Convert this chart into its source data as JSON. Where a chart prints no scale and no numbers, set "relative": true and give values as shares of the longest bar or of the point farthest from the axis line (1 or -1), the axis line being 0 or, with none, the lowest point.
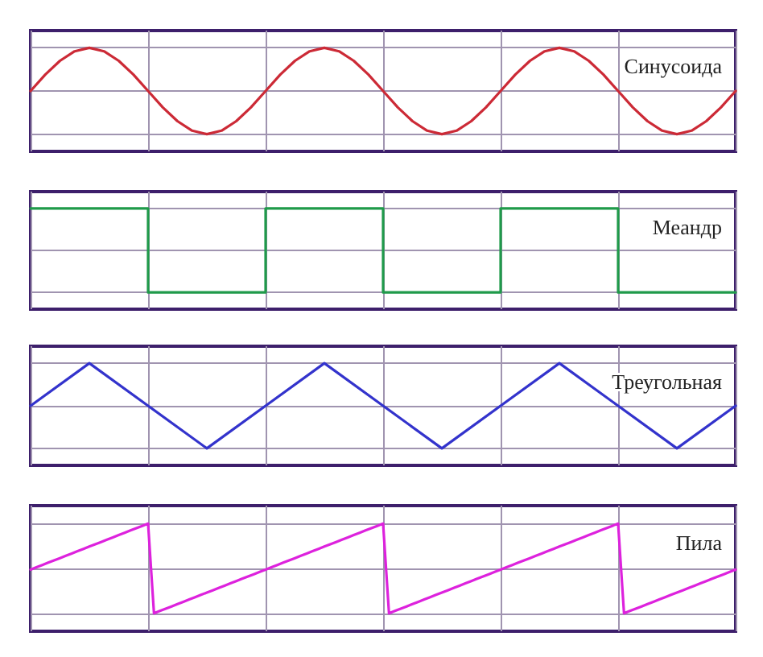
{
  "chart_data": [
    {
      "type": "line",
      "relative": true,
      "grid": true,
      "categories": [
        null,
        null,
        null,
        null,
        null,
        null,
        null,
        null,
        null,
        null,
        null,
        null,
        null,
        null,
        null,
        null,
        null,
        null,
        null,
        null,
        null,
        null,
        null,
        null,
        null,
        null,
        null,
        null,
        null,
        null,
        null,
        null,
        null,
        null,
        null,
        null,
        null,
        null,
        null,
        null,
        null,
        null,
        null,
        null,
        null,
        null,
        null,
        null,
        null
      ],
      "series": [
        {
          "name": "Синусоида",
          "color": "#cc2a36",
          "values": [
            0.5,
            0.69,
            0.85,
            0.96,
            1,
            0.96,
            0.85,
            0.69,
            0.5,
            0.31,
            0.15,
            0.04,
            0,
            0.04,
            0.15,
            0.31,
            0.5,
            0.69,
            0.85,
            0.96,
            1,
            0.96,
            0.85,
            0.69,
            0.5,
            0.31,
            0.15,
            0.04,
            0,
            0.04,
            0.15,
            0.31,
            0.5,
            0.69,
            0.85,
            0.96,
            1,
            0.96,
            0.85,
            0.69,
            0.5,
            0.31,
            0.15,
            0.04,
            0,
            0.04,
            0.15,
            0.31,
            0.5
          ]
        }
      ]
    },
    {
      "type": "step",
      "relative": true,
      "grid": true,
      "categories": [
        null,
        null,
        null,
        null,
        null,
        null,
        null
      ],
      "series": [
        {
          "name": "Меандр",
          "color": "#1f9a4a",
          "values": [
            1,
            0,
            1,
            0,
            1,
            0,
            0
          ]
        }
      ]
    },
    {
      "type": "line",
      "relative": true,
      "grid": true,
      "categories": [
        null,
        null,
        null,
        null,
        null,
        null,
        null,
        null,
        null,
        null,
        null,
        null,
        null
      ],
      "series": [
        {
          "name": "Треугольная",
          "color": "#3333cc",
          "values": [
            0.5,
            1,
            0.5,
            0,
            0.5,
            1,
            0.5,
            0,
            0.5,
            1,
            0.5,
            0,
            0.5
          ]
        }
      ]
    },
    {
      "type": "line",
      "relative": true,
      "grid": true,
      "categories": [
        null,
        null,
        null,
        null,
        null,
        null,
        null,
        null,
        null,
        null,
        null,
        null,
        null,
        null,
        null,
        null,
        null,
        null,
        null,
        null,
        null,
        null,
        null,
        null,
        null,
        null,
        null,
        null,
        null,
        null,
        null,
        null,
        null,
        null,
        null,
        null,
        null,
        null,
        null,
        null,
        null,
        null,
        null,
        null,
        null,
        null,
        null,
        null,
        null,
        null,
        null,
        null,
        null,
        null,
        null,
        null,
        null,
        null,
        null,
        null,
        null,
        null,
        null,
        null,
        null,
        null,
        null,
        null,
        null,
        null,
        null,
        null,
        null,
        null,
        null,
        null,
        null,
        null,
        null,
        null,
        null,
        null,
        null,
        null,
        null,
        null,
        null,
        null,
        null,
        null,
        null,
        null,
        null,
        null,
        null,
        null,
        null,
        null,
        null,
        null,
        null,
        null,
        null,
        null,
        null,
        null,
        null,
        null,
        null,
        null,
        null,
        null,
        null,
        null,
        null,
        null,
        null,
        null,
        null,
        null,
        null
      ],
      "series": [
        {
          "name": "Пила",
          "color": "#dd22dd",
          "values": [
            0.5,
            0.525,
            0.55,
            0.575,
            0.6,
            0.625,
            0.65,
            0.675,
            0.7,
            0.725,
            0.75,
            0.775,
            0.8,
            0.825,
            0.85,
            0.875,
            0.9,
            0.925,
            0.95,
            0.975,
            1,
            0.025,
            0.05,
            0.075,
            0.1,
            0.125,
            0.15,
            0.175,
            0.2,
            0.225,
            0.25,
            0.275,
            0.3,
            0.325,
            0.35,
            0.375,
            0.4,
            0.425,
            0.45,
            0.475,
            0.5,
            0.525,
            0.55,
            0.575,
            0.6,
            0.625,
            0.65,
            0.675,
            0.7,
            0.725,
            0.75,
            0.775,
            0.8,
            0.825,
            0.85,
            0.875,
            0.9,
            0.925,
            0.95,
            0.975,
            1,
            0.025,
            0.05,
            0.075,
            0.1,
            0.125,
            0.15,
            0.175,
            0.2,
            0.225,
            0.25,
            0.275,
            0.3,
            0.325,
            0.35,
            0.375,
            0.4,
            0.425,
            0.45,
            0.475,
            0.5,
            0.525,
            0.55,
            0.575,
            0.6,
            0.625,
            0.65,
            0.675,
            0.7,
            0.725,
            0.75,
            0.775,
            0.8,
            0.825,
            0.85,
            0.875,
            0.9,
            0.925,
            0.95,
            0.975,
            1,
            0.025,
            0.05,
            0.075,
            0.1,
            0.125,
            0.15,
            0.175,
            0.2,
            0.225,
            0.25,
            0.275,
            0.3,
            0.325,
            0.35,
            0.375,
            0.4,
            0.425,
            0.45,
            0.475,
            0.5
          ]
        }
      ]
    }
  ]
}
